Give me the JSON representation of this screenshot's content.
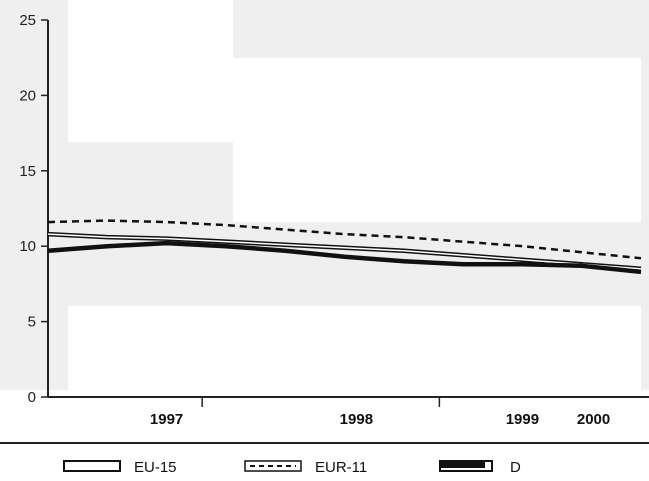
{
  "chart_data": {
    "type": "line",
    "ylim": [
      0,
      25
    ],
    "y_ticks": [
      "0",
      "5",
      "10",
      "15",
      "20",
      "25"
    ],
    "x_labels": [
      {
        "label": "1997",
        "x": 1997.0
      },
      {
        "label": "1998",
        "x": 1998.6
      },
      {
        "label": "1999",
        "x": 2000.0
      },
      {
        "label": "2000",
        "x": 2000.6
      }
    ],
    "xlim": [
      1996.0,
      2001.0
    ],
    "grid": false,
    "legend_position": "bottom",
    "series": [
      {
        "name": "EU-15",
        "style": "double",
        "x": [
          1996.0,
          1996.5,
          1997.0,
          1997.5,
          1998.0,
          1998.5,
          1999.0,
          1999.5,
          2000.0,
          2000.5,
          2001.0
        ],
        "values": [
          10.8,
          10.6,
          10.5,
          10.3,
          10.1,
          9.9,
          9.7,
          9.4,
          9.1,
          8.8,
          8.5
        ]
      },
      {
        "name": "EUR-11",
        "style": "dashed",
        "x": [
          1996.0,
          1996.5,
          1997.0,
          1997.5,
          1998.0,
          1998.5,
          1999.0,
          1999.5,
          2000.0,
          2000.5,
          2001.0
        ],
        "values": [
          11.6,
          11.7,
          11.6,
          11.4,
          11.1,
          10.8,
          10.6,
          10.3,
          10.0,
          9.6,
          9.2
        ]
      },
      {
        "name": "D",
        "style": "thick",
        "x": [
          1996.0,
          1996.5,
          1997.0,
          1997.5,
          1998.0,
          1998.5,
          1999.0,
          1999.5,
          2000.0,
          2000.5,
          2001.0
        ],
        "values": [
          9.7,
          10.0,
          10.2,
          10.0,
          9.7,
          9.3,
          9.0,
          8.8,
          8.8,
          8.7,
          8.3
        ]
      }
    ],
    "colors": {
      "axis": "#222222",
      "line": "#111111",
      "panel": "#efefef"
    }
  }
}
